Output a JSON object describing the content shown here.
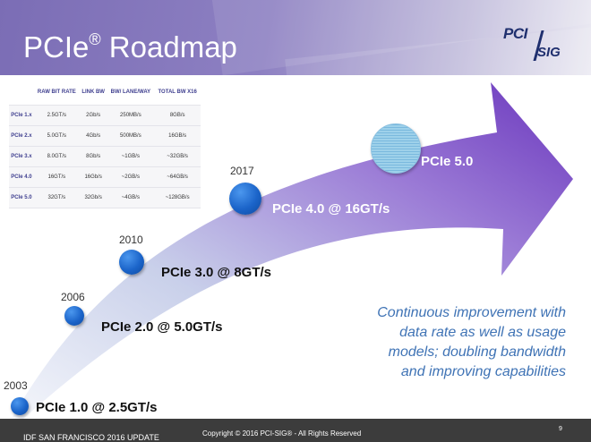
{
  "slide": {
    "title_main": "PCIe",
    "title_sup": "®",
    "title_rest": " Roadmap"
  },
  "logo": {
    "pci": "PCI",
    "sig": "SIG"
  },
  "spec_table": {
    "headers": [
      "",
      "RAW BIT RATE",
      "LINK BW",
      "BW/ LANE/WAY",
      "TOTAL BW X16"
    ],
    "rows": [
      [
        "PCIe 1.x",
        "2.5GT/s",
        "2Gb/s",
        "250MB/s",
        "8GB/s"
      ],
      [
        "PCIe 2.x",
        "5.0GT/s",
        "4Gb/s",
        "500MB/s",
        "16GB/s"
      ],
      [
        "PCIe 3.x",
        "8.0GT/s",
        "8Gb/s",
        "~1GB/s",
        "~32GB/s"
      ],
      [
        "PCIe 4.0",
        "16GT/s",
        "16Gb/s",
        "~2GB/s",
        "~64GB/s"
      ],
      [
        "PCIe 5.0",
        "32GT/s",
        "32Gb/s",
        "~4GB/s",
        "~128GB/s"
      ]
    ]
  },
  "milestones": [
    {
      "year": "2003",
      "label": "PCIe 1.0 @ 2.5GT/s"
    },
    {
      "year": "2006",
      "label": "PCIe 2.0 @ 5.0GT/s"
    },
    {
      "year": "2010",
      "label": "PCIe 3.0 @ 8GT/s"
    },
    {
      "year": "2017",
      "label": "PCIe 4.0 @ 16GT/s"
    },
    {
      "year": "",
      "label": "PCIe 5.0"
    }
  ],
  "note": {
    "lines": [
      "Continuous improvement with",
      "data rate as well as usage",
      "models; doubling bandwidth",
      "and improving capabilities"
    ]
  },
  "footer": {
    "event": "IDF SAN FRANCISCO 2016 UPDATE",
    "copyright": "Copyright © 2016 PCI-SIG® - All Rights Reserved",
    "page": "9"
  },
  "colors": {
    "header": "#8d80c2",
    "arrow": "#7b4fc4",
    "dot": "#1b64c9",
    "note_text": "#3f73b5",
    "footer": "#3c3c3c"
  }
}
